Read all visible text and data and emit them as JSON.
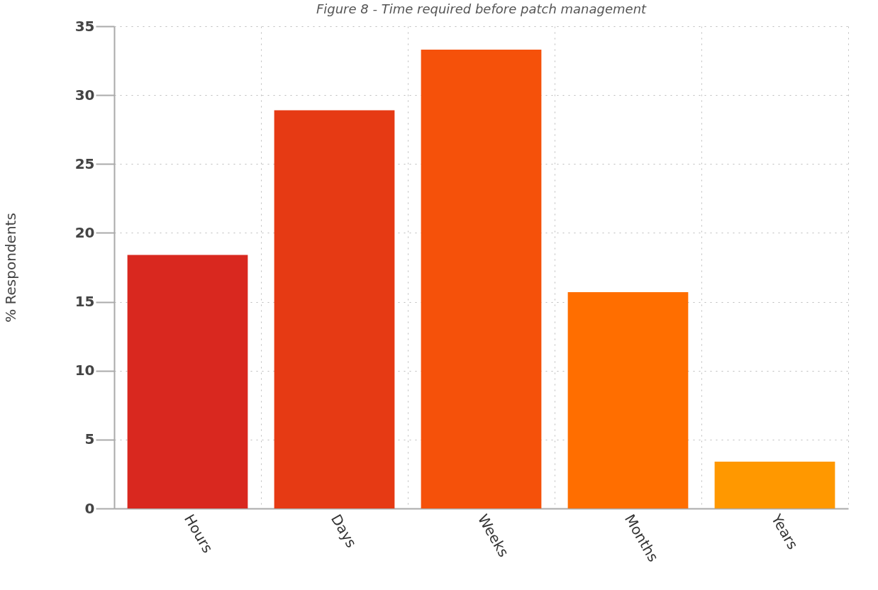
{
  "chart_data": {
    "type": "bar",
    "title": "Figure 8 - Time required before patch management",
    "ylabel": "% Respondents",
    "categories": [
      "Hours",
      "Days",
      "Weeks",
      "Months",
      "Years"
    ],
    "values": [
      18.4,
      28.9,
      33.3,
      15.7,
      3.4
    ],
    "colors": [
      "#d9281f",
      "#e63a14",
      "#f5510a",
      "#ff6e00",
      "#ff9800"
    ],
    "ylim": [
      0,
      35
    ],
    "yticks": [
      0,
      5,
      10,
      15,
      20,
      25,
      30,
      35
    ],
    "grid": true
  }
}
